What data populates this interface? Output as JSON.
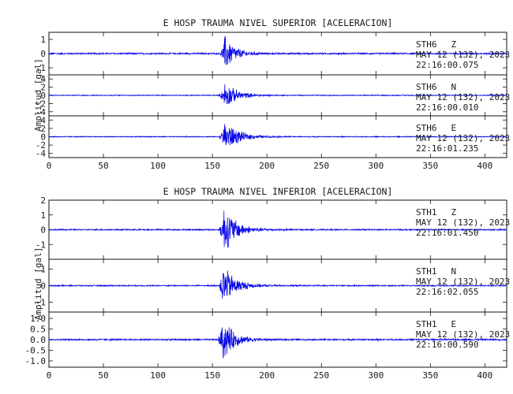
{
  "chart_data": [
    {
      "type": "line",
      "title": "E HOSP TRAUMA NIVEL SUPERIOR [ACELERACION]",
      "ylabel": "Amplitud [gal]",
      "xlabel": "",
      "xlim": [
        0,
        420
      ],
      "x_ticks": [
        "0",
        "50",
        "100",
        "150",
        "200",
        "250",
        "300",
        "350",
        "400"
      ],
      "grid": false,
      "color": "#0a0ae6",
      "series": [
        {
          "station": "STH6",
          "component": "Z",
          "date": "MAY 12 (132), 2023",
          "time": "22:16:00.075",
          "ylim": [
            -1.5,
            1.5
          ],
          "y_ticks": [
            "1",
            "0",
            "-1"
          ],
          "y_tick_values": [
            1,
            0,
            -1
          ],
          "onset_x": 157,
          "peak_x": 161,
          "peak_amplitude": 1.5,
          "noise_level": 0.06,
          "decay": 9
        },
        {
          "station": "STH6",
          "component": "N",
          "date": "MAY 12 (132), 2023",
          "time": "22:16:00.010",
          "ylim": [
            -5,
            5
          ],
          "y_ticks": [
            "4",
            "2",
            "0",
            "-2",
            "-4"
          ],
          "y_tick_values": [
            4,
            2,
            0,
            -2,
            -4
          ],
          "onset_x": 156,
          "peak_x": 161,
          "peak_amplitude": 3.8,
          "noise_level": 0.12,
          "decay": 11
        },
        {
          "station": "STH6",
          "component": "E",
          "date": "MAY 12 (132), 2023",
          "time": "22:16:01.235",
          "ylim": [
            -5,
            5
          ],
          "y_ticks": [
            "4",
            "2",
            "0",
            "-2",
            "-4"
          ],
          "y_tick_values": [
            4,
            2,
            0,
            -2,
            -4
          ],
          "onset_x": 156,
          "peak_x": 161,
          "peak_amplitude": 4.5,
          "noise_level": 0.12,
          "decay": 12
        }
      ]
    },
    {
      "type": "line",
      "title": "E HOSP TRAUMA NIVEL INFERIOR [ACELERACION]",
      "ylabel": "Amplitud [gal]",
      "xlabel": "",
      "xlim": [
        0,
        420
      ],
      "x_ticks": [
        "0",
        "50",
        "100",
        "150",
        "200",
        "250",
        "300",
        "350",
        "400"
      ],
      "grid": false,
      "color": "#0a0ae6",
      "series": [
        {
          "station": "STH1",
          "component": "Z",
          "date": "MAY 12 (132), 2023",
          "time": "22:16:01.450",
          "ylim": [
            -2,
            2
          ],
          "y_ticks": [
            "2",
            "1",
            "0",
            "-1"
          ],
          "y_tick_values": [
            2,
            1,
            0,
            -1
          ],
          "onset_x": 156,
          "peak_x": 160,
          "peak_amplitude": 1.9,
          "noise_level": 0.05,
          "decay": 11
        },
        {
          "station": "STH1",
          "component": "N",
          "date": "MAY 12 (132), 2023",
          "time": "22:16:02.055",
          "ylim": [
            -1.6,
            1.6
          ],
          "y_ticks": [
            "1",
            "0",
            "-1"
          ],
          "y_tick_values": [
            1,
            0,
            -1
          ],
          "onset_x": 156,
          "peak_x": 159,
          "peak_amplitude": 1.5,
          "noise_level": 0.04,
          "decay": 11
        },
        {
          "station": "STH1",
          "component": "E",
          "date": "MAY 12 (132), 2023",
          "time": "22:16:00.590",
          "ylim": [
            -1.3,
            1.3
          ],
          "y_ticks": [
            "1.0",
            "0.5",
            "0.0",
            "-0.5",
            "-1.0"
          ],
          "y_tick_values": [
            1.0,
            0.5,
            0.0,
            -0.5,
            -1.0
          ],
          "onset_x": 155,
          "peak_x": 159,
          "peak_amplitude": 1.2,
          "noise_level": 0.04,
          "decay": 10
        }
      ]
    }
  ]
}
